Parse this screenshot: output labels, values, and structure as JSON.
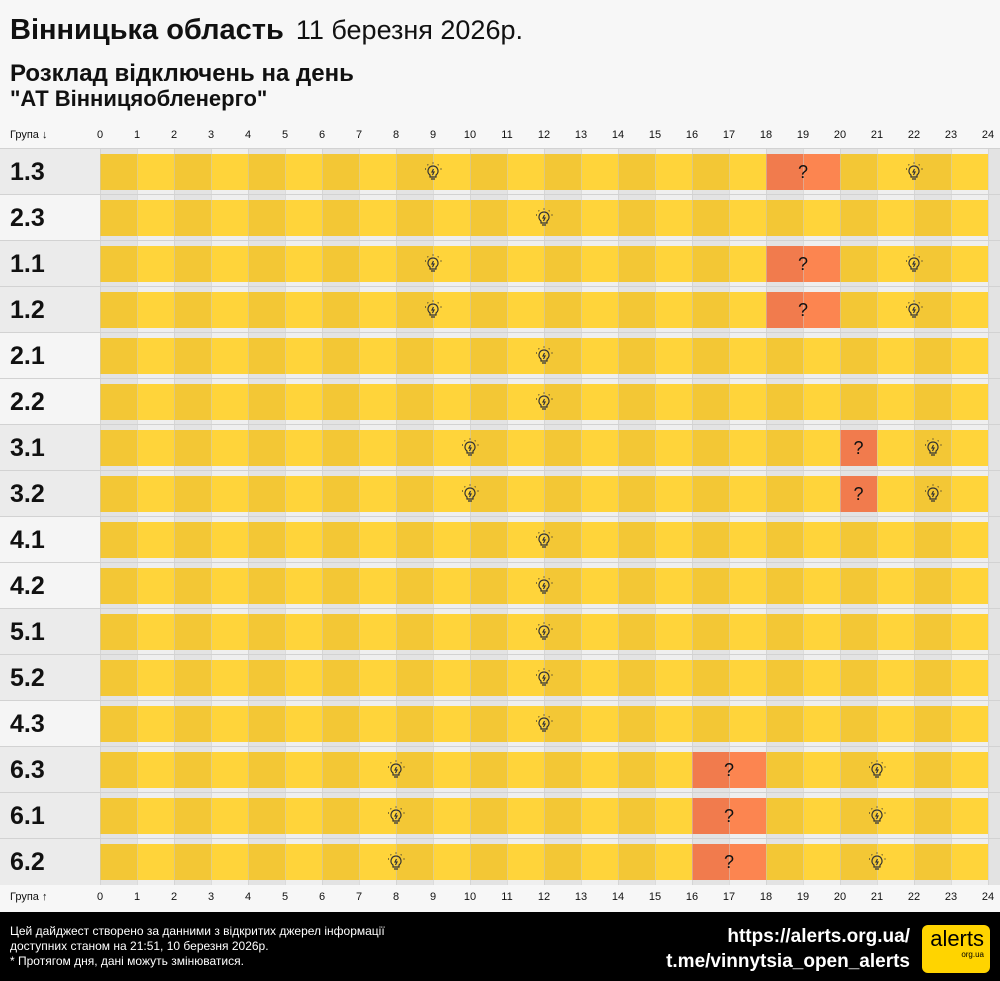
{
  "header": {
    "region": "Вінницька область",
    "date": "11 березня 2026р.",
    "subtitle": "Розклад відключень на день",
    "company": "\"АТ Вінницяобленерго\""
  },
  "axis": {
    "top_label": "Група ↓",
    "bottom_label": "Група ↑",
    "hours": [
      0,
      1,
      2,
      3,
      4,
      5,
      6,
      7,
      8,
      9,
      10,
      11,
      12,
      13,
      14,
      15,
      16,
      17,
      18,
      19,
      20,
      21,
      22,
      23,
      24
    ]
  },
  "colors": {
    "on_light": "#ffd43a",
    "on_dark": "#f3c735",
    "maybe_light": "#fc8550",
    "maybe_dark": "#f17b4d",
    "label_gray": "#ebebeb",
    "label_light": "#f5f5f5"
  },
  "icons": {
    "on": "lightbulb-icon",
    "maybe": "question-mark-icon"
  },
  "maybe_symbol": "?",
  "rows": [
    {
      "label": "1.3",
      "shade": "gray",
      "segments": [
        [
          0,
          18,
          "on"
        ],
        [
          18,
          20,
          "maybe"
        ],
        [
          20,
          24,
          "on"
        ]
      ]
    },
    {
      "label": "2.3",
      "shade": "light",
      "segments": [
        [
          0,
          24,
          "on"
        ]
      ]
    },
    {
      "label": "1.1",
      "shade": "gray",
      "segments": [
        [
          0,
          18,
          "on"
        ],
        [
          18,
          20,
          "maybe"
        ],
        [
          20,
          24,
          "on"
        ]
      ]
    },
    {
      "label": "1.2",
      "shade": "gray",
      "segments": [
        [
          0,
          18,
          "on"
        ],
        [
          18,
          20,
          "maybe"
        ],
        [
          20,
          24,
          "on"
        ]
      ]
    },
    {
      "label": "2.1",
      "shade": "light",
      "segments": [
        [
          0,
          24,
          "on"
        ]
      ]
    },
    {
      "label": "2.2",
      "shade": "light",
      "segments": [
        [
          0,
          24,
          "on"
        ]
      ]
    },
    {
      "label": "3.1",
      "shade": "gray",
      "segments": [
        [
          0,
          20,
          "on"
        ],
        [
          20,
          21,
          "maybe"
        ],
        [
          21,
          24,
          "on"
        ]
      ]
    },
    {
      "label": "3.2",
      "shade": "gray",
      "segments": [
        [
          0,
          20,
          "on"
        ],
        [
          20,
          21,
          "maybe"
        ],
        [
          21,
          24,
          "on"
        ]
      ]
    },
    {
      "label": "4.1",
      "shade": "light",
      "segments": [
        [
          0,
          24,
          "on"
        ]
      ]
    },
    {
      "label": "4.2",
      "shade": "light",
      "segments": [
        [
          0,
          24,
          "on"
        ]
      ]
    },
    {
      "label": "5.1",
      "shade": "gray",
      "segments": [
        [
          0,
          24,
          "on"
        ]
      ]
    },
    {
      "label": "5.2",
      "shade": "gray",
      "segments": [
        [
          0,
          24,
          "on"
        ]
      ]
    },
    {
      "label": "4.3",
      "shade": "light",
      "segments": [
        [
          0,
          24,
          "on"
        ]
      ]
    },
    {
      "label": "6.3",
      "shade": "gray",
      "segments": [
        [
          0,
          16,
          "on"
        ],
        [
          16,
          18,
          "maybe"
        ],
        [
          18,
          24,
          "on"
        ]
      ]
    },
    {
      "label": "6.1",
      "shade": "gray",
      "segments": [
        [
          0,
          16,
          "on"
        ],
        [
          16,
          18,
          "maybe"
        ],
        [
          18,
          24,
          "on"
        ]
      ]
    },
    {
      "label": "6.2",
      "shade": "gray",
      "segments": [
        [
          0,
          16,
          "on"
        ],
        [
          16,
          18,
          "maybe"
        ],
        [
          18,
          24,
          "on"
        ]
      ]
    }
  ],
  "footer": {
    "note_line1": "Цей дайджест створено за данними з відкритих джерел інформації",
    "note_line2": "доступних станом на 21:51, 10 березня 2026р.",
    "note_line3": "* Протягом дня, дані можуть змінюватися.",
    "site": "https://alerts.org.ua/",
    "telegram": "t.me/vinnytsia_open_alerts",
    "logo_text": "alerts",
    "logo_sub": "org.ua"
  }
}
